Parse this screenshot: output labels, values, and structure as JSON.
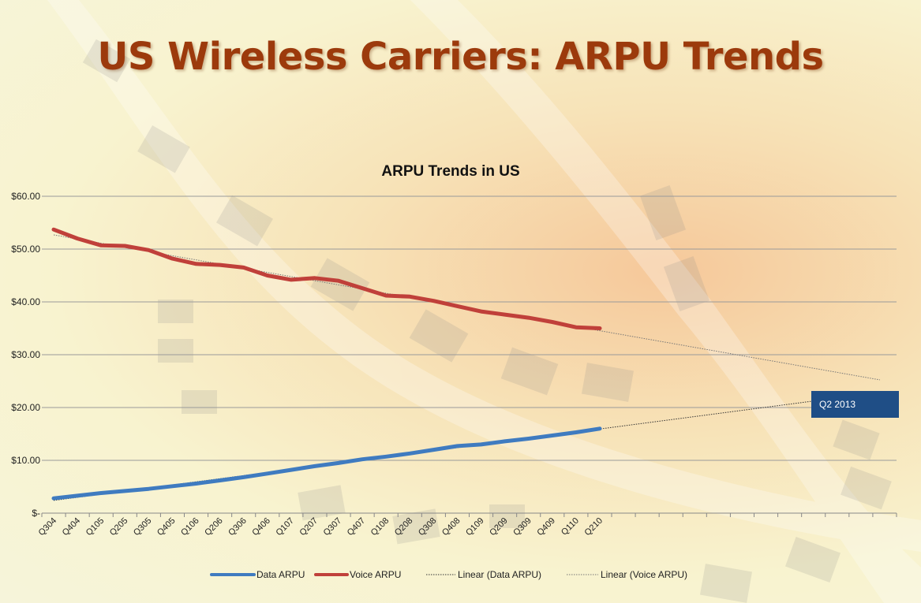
{
  "slide": {
    "title": "US Wireless Carriers: ARPU Trends"
  },
  "callout": {
    "label": "Q2 2013"
  },
  "chart_data": {
    "type": "line",
    "title": "ARPU Trends in US",
    "categories": [
      "Q304",
      "Q404",
      "Q105",
      "Q205",
      "Q305",
      "Q405",
      "Q106",
      "Q206",
      "Q306",
      "Q406",
      "Q107",
      "Q207",
      "Q307",
      "Q407",
      "Q108",
      "Q208",
      "Q308",
      "Q408",
      "Q109",
      "Q209",
      "Q309",
      "Q409",
      "Q110",
      "Q210"
    ],
    "ylim": [
      0,
      60
    ],
    "yticks": [
      {
        "value": 0,
        "label": "$-"
      },
      {
        "value": 10,
        "label": "$10.00"
      },
      {
        "value": 20,
        "label": "$20.00"
      },
      {
        "value": 30,
        "label": "$30.00"
      },
      {
        "value": 40,
        "label": "$40.00"
      },
      {
        "value": 50,
        "label": "$50.00"
      },
      {
        "value": 60,
        "label": "$60.00"
      }
    ],
    "x_extent_periods": 36,
    "series": [
      {
        "name": "Data ARPU",
        "color": "#3f7bc0",
        "values": [
          2.8,
          3.3,
          3.8,
          4.2,
          4.6,
          5.1,
          5.6,
          6.2,
          6.8,
          7.5,
          8.2,
          8.9,
          9.5,
          10.2,
          10.7,
          11.3,
          12.0,
          12.7,
          13.0,
          13.6,
          14.1,
          14.7,
          15.3,
          16.0
        ]
      },
      {
        "name": "Voice ARPU",
        "color": "#c0403a",
        "values": [
          53.7,
          52.0,
          50.7,
          50.6,
          49.8,
          48.2,
          47.2,
          47.0,
          46.5,
          45.0,
          44.2,
          44.5,
          44.0,
          42.6,
          41.2,
          41.0,
          40.2,
          39.2,
          38.2,
          37.6,
          37.0,
          36.2,
          35.2,
          35.0
        ]
      }
    ],
    "trendlines": [
      {
        "name": "Linear (Data ARPU)",
        "of": "Data ARPU",
        "color": "#333333"
      },
      {
        "name": "Linear (Voice ARPU)",
        "of": "Voice ARPU",
        "color": "#777777"
      }
    ],
    "legend": {
      "position": "bottom"
    }
  }
}
